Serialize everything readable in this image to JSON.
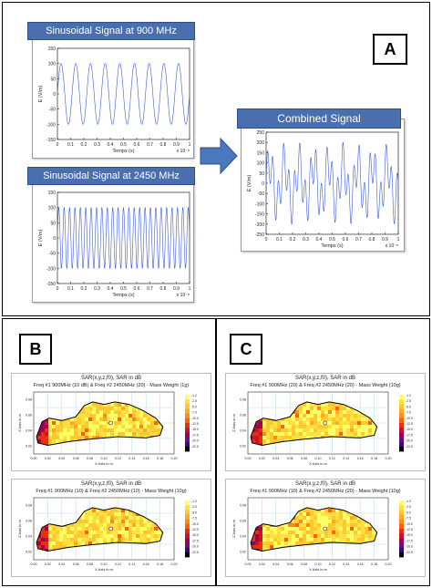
{
  "panel_a": {
    "label": "A",
    "plot1_title": "Sinusoidal Signal at 900 MHz",
    "plot2_title": "Sinusoidal Signal at 2450 MHz",
    "plot3_title": "Combined Signal",
    "plot1_ylabel": "E (V/m)",
    "plot1_xlabel": "Temps (s)",
    "plot2_ylabel": "E (V/m)",
    "plot2_xlabel": "Temps (s)",
    "plot3_ylabel": "E (V/m)",
    "plot3_xlabel": "Temps (s)",
    "x_exp": "x 10⁻⁸",
    "arrow_color": "#4a78bf"
  },
  "panel_b": {
    "label": "B",
    "top_title": "SAR(x,y,z,f0), SAR in dB",
    "top_subtitle": "Freq #1 900MHz (10 dB) & Freq #2 2450MHz (20) - Mass Weight (1g)",
    "bottom_title": "SAR(x,y,z,f0), SAR in dB",
    "bottom_subtitle": "Freq #1 900MHz (10) & Freq #2 2450MHz (10) - Mass Weight (10g)",
    "xlabel": "X Axis in m",
    "ylabel": "Z Axis in m"
  },
  "panel_c": {
    "label": "C",
    "top_title": "SAR(x,y,z,f0), SAR in dB",
    "top_subtitle": "Freq #1 900MHz (20) & Freq #2 2450MHz (20) - Mass Weight (10g)",
    "bottom_title": "SAR(x,y,z,f0), SAR in dB",
    "bottom_subtitle": "Freq #1 900MHz (10) & Freq #2 2450MHz (20) - Mass Weight (10g)",
    "xlabel": "X Axis in m",
    "ylabel": "Z Axis in m"
  },
  "chart_data": [
    {
      "type": "line",
      "title": "Sinusoidal Signal at 900 MHz",
      "xlabel": "Temps (s)",
      "ylabel": "E (V/m)",
      "xlim": [
        0,
        1e-08
      ],
      "ylim": [
        -150,
        150
      ],
      "xticks": [
        "0",
        "0.1",
        "0.2",
        "0.3",
        "0.4",
        "0.5",
        "0.6",
        "0.7",
        "0.8",
        "0.9",
        "1"
      ],
      "yticks": [
        "150",
        "100",
        "50",
        "0",
        "-50",
        "-100",
        "-150"
      ],
      "series": [
        {
          "amplitude": 100,
          "frequency_hz": 900000000
        }
      ]
    },
    {
      "type": "line",
      "title": "Sinusoidal Signal at 2450 MHz",
      "xlabel": "Temps (s)",
      "ylabel": "E (V/m)",
      "xlim": [
        0,
        1e-08
      ],
      "ylim": [
        -150,
        150
      ],
      "xticks": [
        "0",
        "0.1",
        "0.2",
        "0.3",
        "0.4",
        "0.5",
        "0.6",
        "0.7",
        "0.8",
        "0.9",
        "1"
      ],
      "yticks": [
        "150",
        "100",
        "50",
        "0",
        "-50",
        "-100",
        "-150"
      ],
      "series": [
        {
          "amplitude": 100,
          "frequency_hz": 2450000000
        }
      ]
    },
    {
      "type": "line",
      "title": "Combined Signal",
      "xlabel": "Temps (s)",
      "ylabel": "E (V/m)",
      "xlim": [
        0,
        1e-08
      ],
      "ylim": [
        -250,
        250
      ],
      "xticks": [
        "0",
        "0.1",
        "0.2",
        "0.3",
        "0.4",
        "0.5",
        "0.6",
        "0.7",
        "0.8",
        "0.9",
        "1"
      ],
      "yticks": [
        "250",
        "200",
        "150",
        "100",
        "50",
        "0",
        "-50",
        "-100",
        "-150",
        "-200",
        "-250"
      ],
      "series": [
        {
          "components": [
            {
              "amplitude": 100,
              "frequency_hz": 900000000
            },
            {
              "amplitude": 100,
              "frequency_hz": 2450000000
            }
          ]
        }
      ]
    },
    {
      "type": "heatmap",
      "description_of_axes": {
        "x_ticks": [
          "0.00",
          "0.02",
          "0.04",
          "0.06",
          "0.08",
          "0.10",
          "0.12",
          "0.14",
          "0.16",
          "0.18",
          "0.20"
        ],
        "y_ticks": [
          "0.08",
          "0.06",
          "0.04",
          "0.02"
        ]
      },
      "colorbar_ticks": [
        "-1.2",
        "-2.5",
        "-5.0",
        "-7.5",
        "-10.0",
        "-12.5",
        "-15.0",
        "-17.5",
        "-20.0",
        "-22.5"
      ]
    }
  ]
}
